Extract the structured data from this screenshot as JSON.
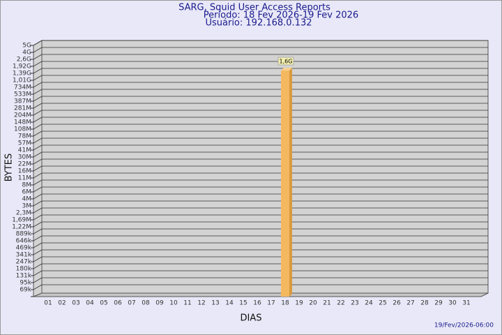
{
  "chart_data": {
    "type": "bar",
    "title": "SARG, Squid User Access Reports",
    "subtitle": [
      "Período: 18 Fev 2026-19 Fev 2026",
      "Usuário: 192.168.0.132"
    ],
    "ylabel": "BYTES",
    "xlabel": "DIAS",
    "footer": "19/Fev/2026-06:00",
    "categories": [
      "01",
      "02",
      "03",
      "04",
      "05",
      "06",
      "07",
      "08",
      "09",
      "10",
      "11",
      "12",
      "13",
      "14",
      "15",
      "16",
      "17",
      "18",
      "19",
      "20",
      "21",
      "22",
      "23",
      "24",
      "25",
      "26",
      "27",
      "28",
      "29",
      "30",
      "31"
    ],
    "values": [
      null,
      null,
      null,
      null,
      null,
      null,
      null,
      null,
      null,
      null,
      null,
      null,
      null,
      null,
      null,
      null,
      null,
      1600000000,
      null,
      null,
      null,
      null,
      null,
      null,
      null,
      null,
      null,
      null,
      null,
      null,
      null
    ],
    "value_labels": [
      null,
      null,
      null,
      null,
      null,
      null,
      null,
      null,
      null,
      null,
      null,
      null,
      null,
      null,
      null,
      null,
      null,
      "1,6G",
      null,
      null,
      null,
      null,
      null,
      null,
      null,
      null,
      null,
      null,
      null,
      null,
      null
    ],
    "color": "#f4b860",
    "ylim": [
      0,
      5000000000
    ],
    "yticks": [
      {
        "value": 5000000000,
        "label": "5G"
      },
      {
        "value": 4000000000,
        "label": "4G"
      },
      {
        "value": 2600000000,
        "label": "2,6G"
      },
      {
        "value": 1920000000,
        "label": "1,92G"
      },
      {
        "value": 1390000000,
        "label": "1,39G"
      },
      {
        "value": 1010000000,
        "label": "1,01G"
      },
      {
        "value": 734000000,
        "label": "734M"
      },
      {
        "value": 533000000,
        "label": "533M"
      },
      {
        "value": 387000000,
        "label": "387M"
      },
      {
        "value": 281000000,
        "label": "281M"
      },
      {
        "value": 204000000,
        "label": "204M"
      },
      {
        "value": 148000000,
        "label": "148M"
      },
      {
        "value": 108000000,
        "label": "108M"
      },
      {
        "value": 78000000,
        "label": "78M"
      },
      {
        "value": 57000000,
        "label": "57M"
      },
      {
        "value": 41000000,
        "label": "41M"
      },
      {
        "value": 30000000,
        "label": "30M"
      },
      {
        "value": 22000000,
        "label": "22M"
      },
      {
        "value": 16000000,
        "label": "16M"
      },
      {
        "value": 11000000,
        "label": "11M"
      },
      {
        "value": 8000000,
        "label": "8M"
      },
      {
        "value": 6000000,
        "label": "6M"
      },
      {
        "value": 4000000,
        "label": "4M"
      },
      {
        "value": 3000000,
        "label": "3M"
      },
      {
        "value": 2300000,
        "label": "2,3M"
      },
      {
        "value": 1690000,
        "label": "1,69M"
      },
      {
        "value": 1220000,
        "label": "1,22M"
      },
      {
        "value": 889000,
        "label": "889k"
      },
      {
        "value": 646000,
        "label": "646k"
      },
      {
        "value": 469000,
        "label": "469k"
      },
      {
        "value": 341000,
        "label": "341k"
      },
      {
        "value": 247000,
        "label": "247k"
      },
      {
        "value": 180000,
        "label": "180k"
      },
      {
        "value": 131000,
        "label": "131k"
      },
      {
        "value": 95000,
        "label": "95k"
      },
      {
        "value": 69000,
        "label": "69k"
      }
    ],
    "grid": true
  }
}
